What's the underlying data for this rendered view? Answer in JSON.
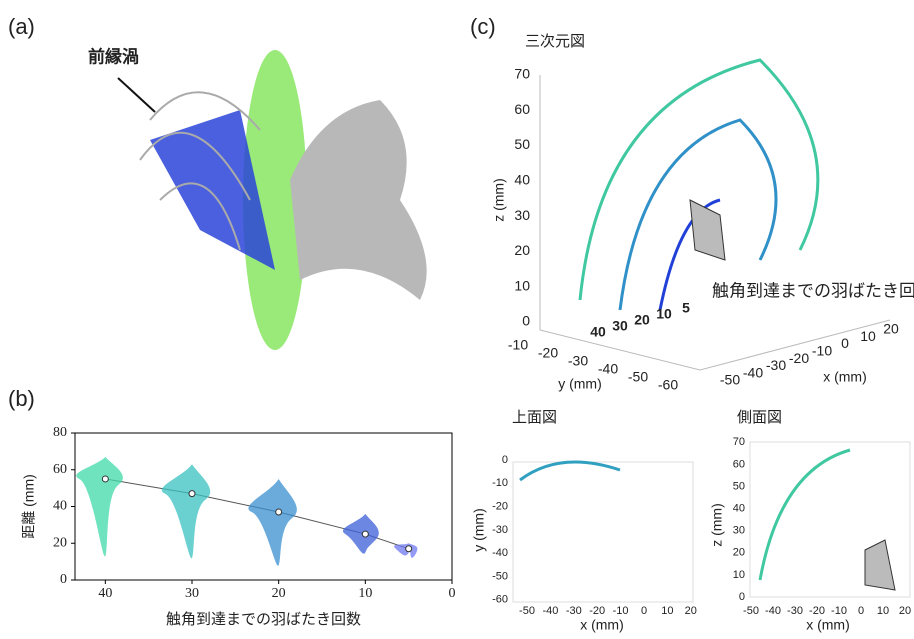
{
  "panel_a": {
    "label": "(a)",
    "annotation": "前縁渦"
  },
  "chart_data": {
    "type": "violin",
    "label": "(b)",
    "x_label": "触角到達までの羽ばたき回数",
    "y_label": "距離 (mm)",
    "x": [
      40,
      30,
      20,
      10,
      5
    ],
    "medians": [
      55,
      47,
      37,
      25,
      17
    ],
    "mins": [
      13,
      12,
      8,
      15,
      15
    ],
    "maxs": [
      67,
      63,
      55,
      36,
      20
    ],
    "colors": [
      "#3fd9a8",
      "#3ac0c0",
      "#3a8fd0",
      "#3a5fd8",
      "#6f78f0"
    ],
    "xlim": [
      43.5,
      0
    ],
    "xticks": [
      40,
      30,
      20,
      10,
      0
    ],
    "ylim": [
      0,
      80
    ],
    "yticks": [
      0,
      20,
      40,
      60,
      80
    ]
  },
  "panel_c": {
    "label": "(c)",
    "annotation": "触角到達までの羽ばたき回数",
    "counts": [
      "40",
      "30",
      "20",
      "10",
      "5"
    ],
    "view3d": {
      "title": "三次元図",
      "x_label": "x (mm)",
      "y_label": "y (mm)",
      "z_label": "z (mm)",
      "xticks": [
        -50,
        -40,
        -30,
        -20,
        -10,
        0,
        10,
        20
      ],
      "yticks": [
        -10,
        -20,
        -30,
        -40,
        -50,
        -60
      ],
      "zticks": [
        0,
        10,
        20,
        30,
        40,
        50,
        60,
        70
      ]
    },
    "top": {
      "title": "上面図",
      "x_label": "x (mm)",
      "y_label": "y (mm)",
      "xticks": [
        -50,
        -40,
        -30,
        -20,
        -10,
        0,
        10,
        20
      ],
      "yticks": [
        0,
        -10,
        -20,
        -30,
        -40,
        -50,
        -60
      ]
    },
    "side": {
      "title": "側面図",
      "x_label": "x (mm)",
      "z_label": "z (mm)",
      "xticks": [
        -50,
        -40,
        -30,
        -20,
        -10,
        0,
        10,
        20
      ],
      "zticks": [
        0,
        10,
        20,
        30,
        40,
        50,
        60,
        70
      ]
    }
  }
}
